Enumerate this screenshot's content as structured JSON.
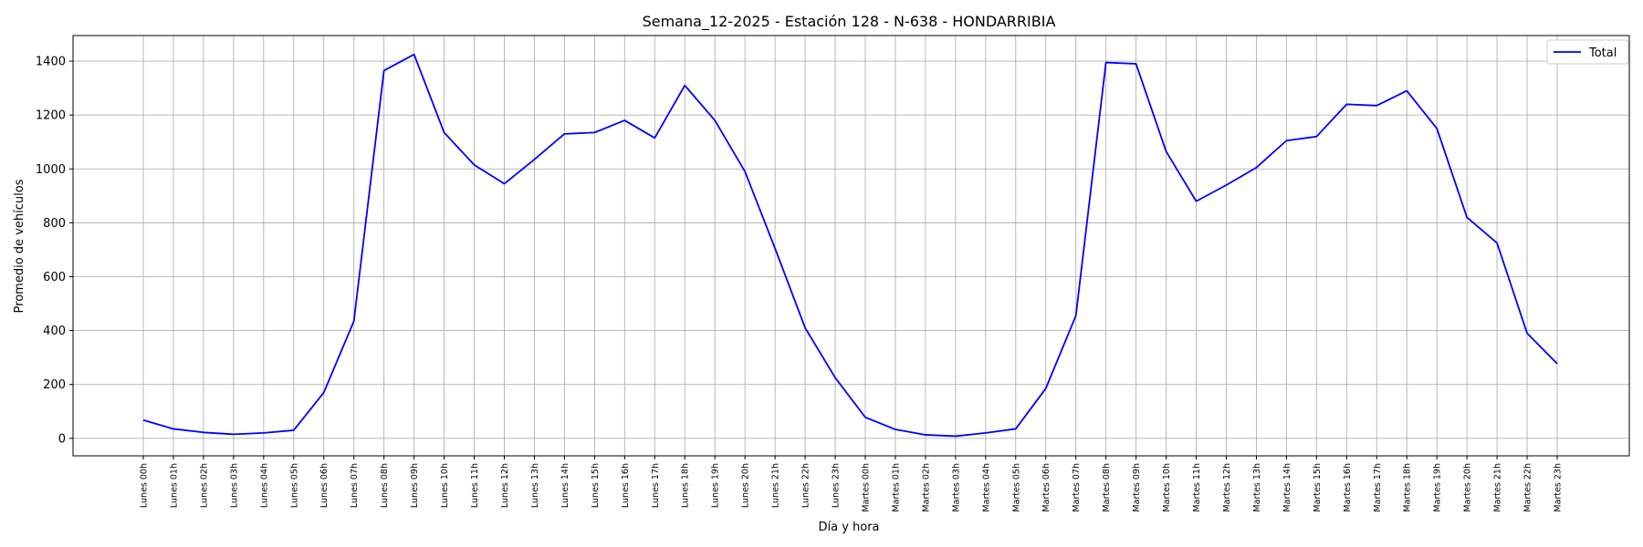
{
  "chart_data": {
    "type": "line",
    "title": "Semana_12-2025 - Estación 128 - N-638  - HONDARRIBIA",
    "xlabel": "Día y hora",
    "ylabel": "Promedio de vehículos",
    "ylim": [
      -65,
      1495
    ],
    "yticks": [
      0,
      200,
      400,
      600,
      800,
      1000,
      1200,
      1400
    ],
    "grid": true,
    "legend_position": "top-right",
    "colors": {
      "series": "#0000ff",
      "grid": "#b0b0b0",
      "axes": "#000000"
    },
    "categories": [
      "Lunes 00h",
      "Lunes 01h",
      "Lunes 02h",
      "Lunes 03h",
      "Lunes 04h",
      "Lunes 05h",
      "Lunes 06h",
      "Lunes 07h",
      "Lunes 08h",
      "Lunes 09h",
      "Lunes 10h",
      "Lunes 11h",
      "Lunes 12h",
      "Lunes 13h",
      "Lunes 14h",
      "Lunes 15h",
      "Lunes 16h",
      "Lunes 17h",
      "Lunes 18h",
      "Lunes 19h",
      "Lunes 20h",
      "Lunes 21h",
      "Lunes 22h",
      "Lunes 23h",
      "Martes 00h",
      "Martes 01h",
      "Martes 02h",
      "Martes 03h",
      "Martes 04h",
      "Martes 05h",
      "Martes 06h",
      "Martes 07h",
      "Martes 08h",
      "Martes 09h",
      "Martes 10h",
      "Martes 11h",
      "Martes 12h",
      "Martes 13h",
      "Martes 14h",
      "Martes 15h",
      "Martes 16h",
      "Martes 17h",
      "Martes 18h",
      "Martes 19h",
      "Martes 20h",
      "Martes 21h",
      "Martes 22h",
      "Martes 23h"
    ],
    "series": [
      {
        "name": "Total",
        "values": [
          68,
          35,
          22,
          15,
          20,
          30,
          170,
          435,
          1365,
          1425,
          1135,
          1015,
          945,
          1035,
          1130,
          1135,
          1180,
          1115,
          1310,
          1180,
          990,
          705,
          410,
          225,
          78,
          33,
          13,
          8,
          20,
          35,
          185,
          455,
          1395,
          1390,
          1065,
          880,
          940,
          1005,
          1105,
          1120,
          1240,
          1235,
          1290,
          1150,
          820,
          725,
          390,
          277
        ]
      }
    ]
  }
}
